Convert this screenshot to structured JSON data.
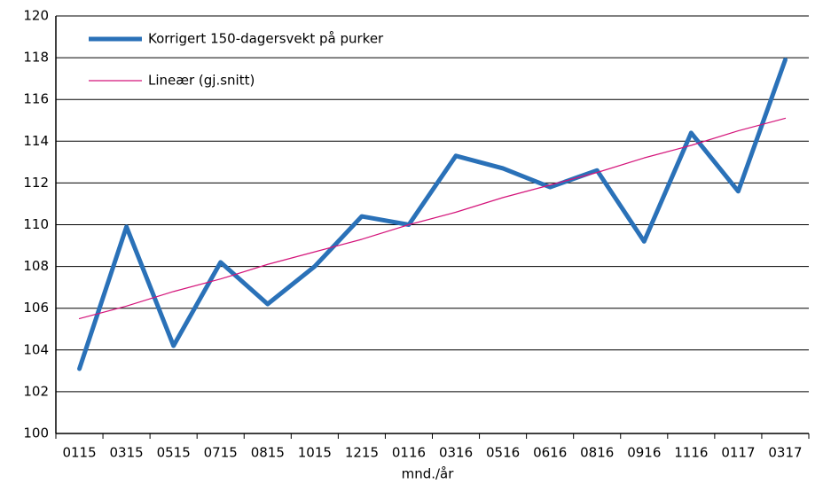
{
  "chart_data": {
    "type": "line",
    "categories": [
      "0115",
      "0315",
      "0515",
      "0715",
      "0815",
      "1015",
      "1215",
      "0116",
      "0316",
      "0516",
      "0616",
      "0816",
      "0916",
      "1116",
      "0117",
      "0317"
    ],
    "series": [
      {
        "name": "Korrigert 150-dagersvekt på purker",
        "color": "#2a71b8",
        "width": 5,
        "values": [
          103.1,
          109.9,
          104.2,
          108.2,
          106.2,
          108.0,
          110.4,
          110.0,
          113.3,
          112.7,
          111.8,
          112.6,
          109.2,
          114.4,
          111.6,
          117.9
        ]
      },
      {
        "name": "Lineær (gj.snitt)",
        "color": "#d4147a",
        "width": 1.2,
        "values": [
          105.5,
          106.1,
          106.8,
          107.4,
          108.1,
          108.7,
          109.3,
          110.0,
          110.6,
          111.3,
          111.9,
          112.5,
          113.2,
          113.8,
          114.5,
          115.1
        ]
      }
    ],
    "x_label": "mnd./år",
    "ylim": [
      100,
      120
    ],
    "yticks": [
      100,
      102,
      104,
      106,
      108,
      110,
      112,
      114,
      116,
      118,
      120
    ],
    "grid": true
  }
}
